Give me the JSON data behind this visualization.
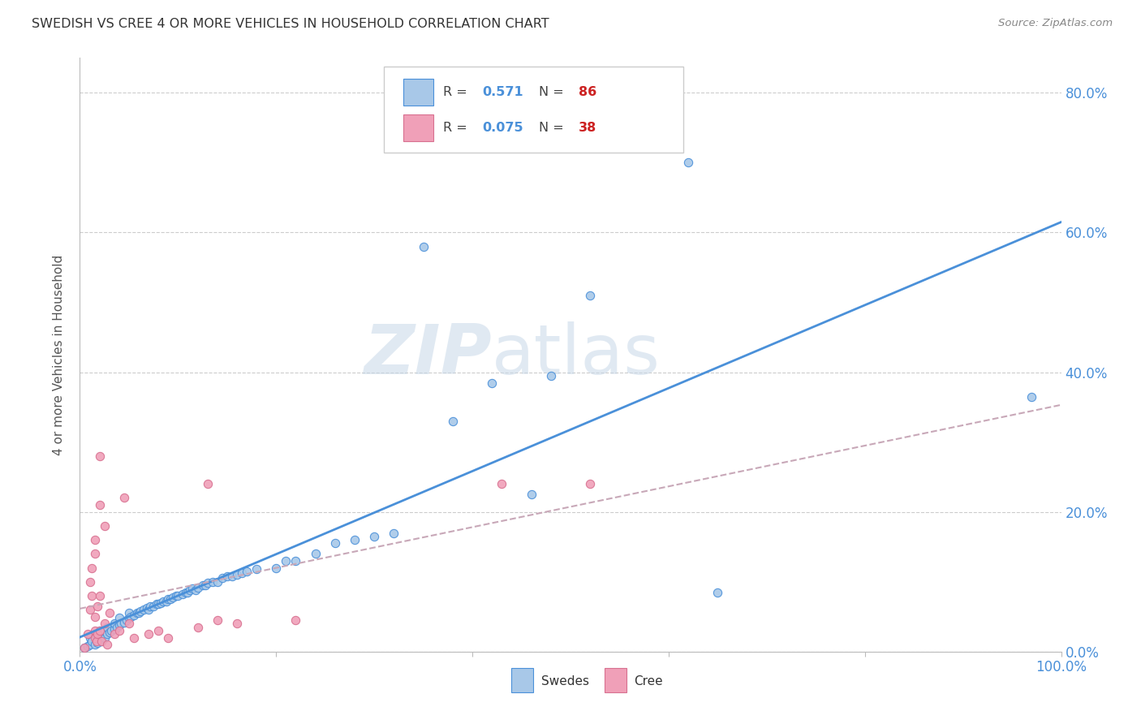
{
  "title": "SWEDISH VS CREE 4 OR MORE VEHICLES IN HOUSEHOLD CORRELATION CHART",
  "source": "Source: ZipAtlas.com",
  "ylabel": "4 or more Vehicles in Household",
  "watermark": "ZIPatlas",
  "swedish_color": "#a8c8e8",
  "cree_color": "#f0a0b8",
  "swedish_line_color": "#4a90d9",
  "cree_line_color": "#c8a0b0",
  "xlim": [
    0.0,
    1.0
  ],
  "ylim": [
    0.0,
    0.85
  ],
  "swedish_points": [
    [
      0.005,
      0.005
    ],
    [
      0.008,
      0.008
    ],
    [
      0.01,
      0.01
    ],
    [
      0.01,
      0.02
    ],
    [
      0.012,
      0.015
    ],
    [
      0.015,
      0.01
    ],
    [
      0.015,
      0.025
    ],
    [
      0.017,
      0.018
    ],
    [
      0.018,
      0.012
    ],
    [
      0.02,
      0.02
    ],
    [
      0.02,
      0.03
    ],
    [
      0.022,
      0.015
    ],
    [
      0.022,
      0.025
    ],
    [
      0.025,
      0.02
    ],
    [
      0.025,
      0.03
    ],
    [
      0.028,
      0.025
    ],
    [
      0.028,
      0.035
    ],
    [
      0.03,
      0.028
    ],
    [
      0.032,
      0.03
    ],
    [
      0.035,
      0.032
    ],
    [
      0.035,
      0.04
    ],
    [
      0.038,
      0.035
    ],
    [
      0.04,
      0.038
    ],
    [
      0.04,
      0.048
    ],
    [
      0.042,
      0.04
    ],
    [
      0.045,
      0.042
    ],
    [
      0.048,
      0.045
    ],
    [
      0.05,
      0.048
    ],
    [
      0.05,
      0.055
    ],
    [
      0.052,
      0.05
    ],
    [
      0.055,
      0.052
    ],
    [
      0.058,
      0.055
    ],
    [
      0.06,
      0.055
    ],
    [
      0.062,
      0.058
    ],
    [
      0.065,
      0.06
    ],
    [
      0.068,
      0.062
    ],
    [
      0.07,
      0.06
    ],
    [
      0.072,
      0.065
    ],
    [
      0.075,
      0.065
    ],
    [
      0.078,
      0.068
    ],
    [
      0.08,
      0.068
    ],
    [
      0.082,
      0.07
    ],
    [
      0.085,
      0.072
    ],
    [
      0.088,
      0.072
    ],
    [
      0.09,
      0.075
    ],
    [
      0.092,
      0.075
    ],
    [
      0.095,
      0.078
    ],
    [
      0.098,
      0.08
    ],
    [
      0.1,
      0.08
    ],
    [
      0.105,
      0.082
    ],
    [
      0.108,
      0.085
    ],
    [
      0.11,
      0.085
    ],
    [
      0.112,
      0.088
    ],
    [
      0.115,
      0.09
    ],
    [
      0.118,
      0.088
    ],
    [
      0.12,
      0.092
    ],
    [
      0.125,
      0.095
    ],
    [
      0.128,
      0.095
    ],
    [
      0.13,
      0.098
    ],
    [
      0.135,
      0.1
    ],
    [
      0.14,
      0.1
    ],
    [
      0.145,
      0.105
    ],
    [
      0.15,
      0.108
    ],
    [
      0.155,
      0.108
    ],
    [
      0.16,
      0.11
    ],
    [
      0.165,
      0.112
    ],
    [
      0.17,
      0.115
    ],
    [
      0.18,
      0.118
    ],
    [
      0.2,
      0.12
    ],
    [
      0.21,
      0.13
    ],
    [
      0.22,
      0.13
    ],
    [
      0.24,
      0.14
    ],
    [
      0.26,
      0.155
    ],
    [
      0.28,
      0.16
    ],
    [
      0.3,
      0.165
    ],
    [
      0.32,
      0.17
    ],
    [
      0.35,
      0.58
    ],
    [
      0.38,
      0.33
    ],
    [
      0.42,
      0.385
    ],
    [
      0.46,
      0.225
    ],
    [
      0.48,
      0.395
    ],
    [
      0.52,
      0.51
    ],
    [
      0.62,
      0.7
    ],
    [
      0.65,
      0.085
    ],
    [
      0.97,
      0.365
    ]
  ],
  "cree_points": [
    [
      0.005,
      0.005
    ],
    [
      0.008,
      0.025
    ],
    [
      0.01,
      0.06
    ],
    [
      0.01,
      0.1
    ],
    [
      0.012,
      0.08
    ],
    [
      0.012,
      0.12
    ],
    [
      0.015,
      0.05
    ],
    [
      0.015,
      0.14
    ],
    [
      0.015,
      0.16
    ],
    [
      0.015,
      0.03
    ],
    [
      0.015,
      0.02
    ],
    [
      0.017,
      0.015
    ],
    [
      0.018,
      0.065
    ],
    [
      0.018,
      0.025
    ],
    [
      0.02,
      0.08
    ],
    [
      0.02,
      0.21
    ],
    [
      0.02,
      0.28
    ],
    [
      0.02,
      0.03
    ],
    [
      0.022,
      0.015
    ],
    [
      0.025,
      0.04
    ],
    [
      0.025,
      0.18
    ],
    [
      0.028,
      0.01
    ],
    [
      0.03,
      0.055
    ],
    [
      0.035,
      0.025
    ],
    [
      0.04,
      0.03
    ],
    [
      0.045,
      0.22
    ],
    [
      0.05,
      0.04
    ],
    [
      0.055,
      0.02
    ],
    [
      0.07,
      0.025
    ],
    [
      0.08,
      0.03
    ],
    [
      0.09,
      0.02
    ],
    [
      0.12,
      0.035
    ],
    [
      0.13,
      0.24
    ],
    [
      0.14,
      0.045
    ],
    [
      0.16,
      0.04
    ],
    [
      0.22,
      0.045
    ],
    [
      0.43,
      0.24
    ],
    [
      0.52,
      0.24
    ]
  ]
}
